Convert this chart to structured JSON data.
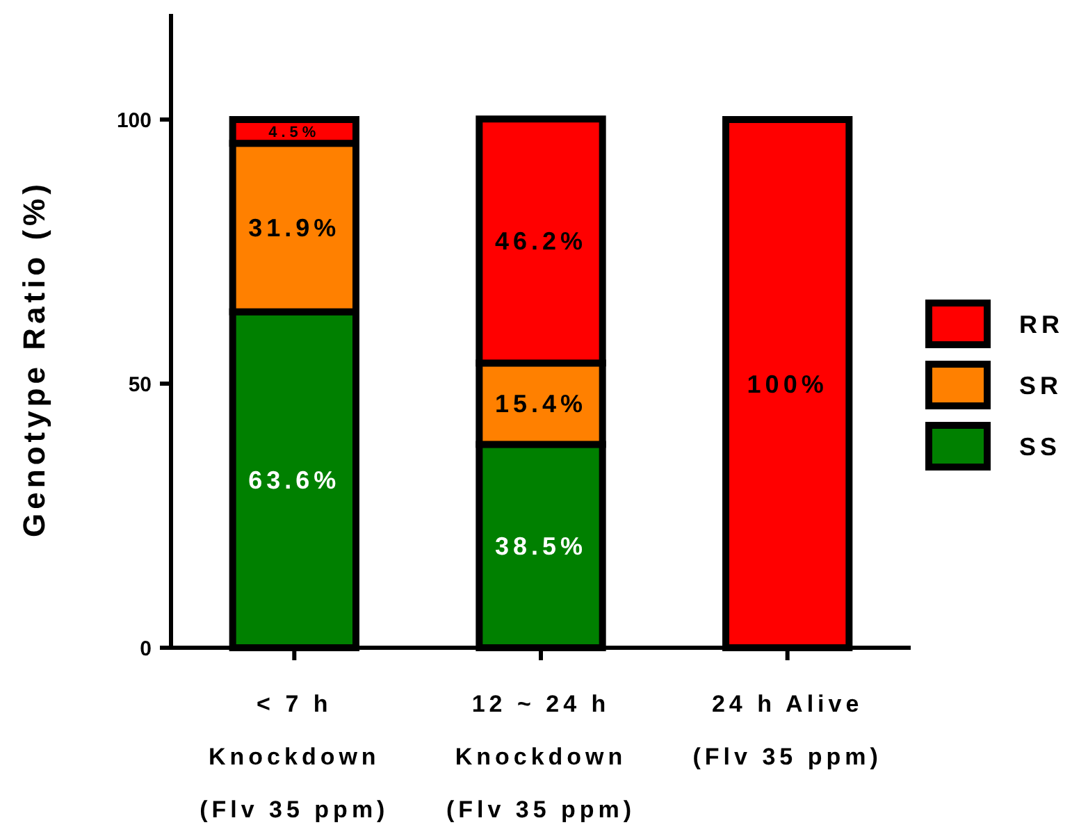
{
  "chart_data": {
    "type": "bar",
    "stacked": true,
    "ylabel": "Genotype Ratio (%)",
    "categories": [
      "< 7 h\nKnockdown\n(Flv 35 ppm)",
      "12 ~ 24 h\nKnockdown\n(Flv 35 ppm)",
      "24 h Alive\n(Flv 35 ppm)"
    ],
    "series": [
      {
        "name": "SS",
        "color": "#008000",
        "values": [
          63.6,
          38.5,
          0
        ],
        "value_labels": [
          "63.6%",
          "38.5%",
          null
        ]
      },
      {
        "name": "SR",
        "color": "#ff8000",
        "values": [
          31.9,
          15.4,
          0
        ],
        "value_labels": [
          "31.9%",
          "15.4%",
          null
        ]
      },
      {
        "name": "RR",
        "color": "#ff0000",
        "values": [
          4.5,
          46.2,
          100
        ],
        "value_labels": [
          "4.5%",
          "46.2%",
          "100%"
        ]
      }
    ],
    "ylim": [
      0,
      120
    ],
    "yticks": [
      0,
      50,
      100
    ],
    "legend": "right"
  }
}
